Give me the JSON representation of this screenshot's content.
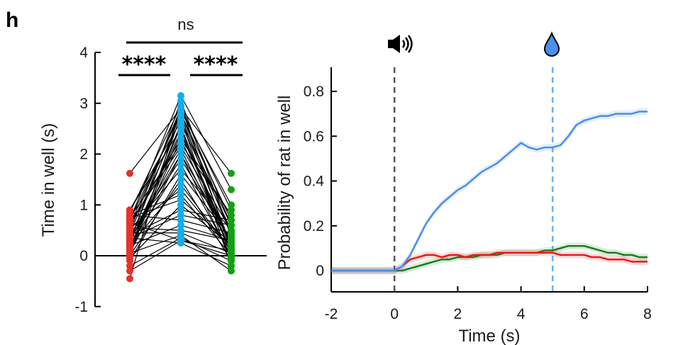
{
  "panel_label": "h",
  "colors": {
    "red": "#e8302a",
    "blue": "#14aee8",
    "green": "#12a112",
    "curve_blue": "#4a8fe8",
    "curve_red": "#e61a1a",
    "curve_green": "#1a7f1a",
    "cue_line": "#555555",
    "reward_line": "#6ab0ee"
  },
  "icons": {
    "cue": "speaker-icon",
    "reward": "water-drop-icon"
  },
  "chart_data": [
    {
      "type": "scatter",
      "subtype": "paired-dot-plot",
      "ylabel": "Time in well (s)",
      "ylim": [
        -1,
        4
      ],
      "yticks": [
        "-1",
        "0",
        "1",
        "2",
        "3",
        "4"
      ],
      "groups": [
        "red",
        "blue",
        "green"
      ],
      "significance": [
        {
          "pair": [
            0,
            1
          ],
          "label": "****"
        },
        {
          "pair": [
            1,
            2
          ],
          "label": "****"
        },
        {
          "pair": [
            0,
            2
          ],
          "label": "ns"
        }
      ],
      "pairs": [
        [
          0.85,
          2.95,
          0.6
        ],
        [
          0.9,
          2.5,
          0.2
        ],
        [
          0.7,
          2.8,
          0.4
        ],
        [
          0.6,
          2.3,
          0.1
        ],
        [
          0.5,
          2.9,
          0.9
        ],
        [
          0.3,
          2.0,
          0.3
        ],
        [
          0.2,
          1.8,
          0.0
        ],
        [
          0.1,
          2.6,
          0.5
        ],
        [
          0.0,
          1.5,
          -0.1
        ],
        [
          -0.05,
          1.0,
          0.2
        ],
        [
          0.4,
          0.9,
          0.7
        ],
        [
          0.55,
          0.5,
          0.3
        ],
        [
          0.65,
          0.3,
          0.1
        ],
        [
          0.75,
          2.2,
          0.8
        ],
        [
          0.8,
          1.2,
          0.0
        ],
        [
          0.45,
          2.7,
          -0.2
        ],
        [
          0.35,
          0.8,
          0.6
        ],
        [
          0.25,
          3.05,
          0.4
        ],
        [
          0.15,
          2.4,
          0.2
        ],
        [
          0.05,
          0.4,
          -0.3
        ],
        [
          0.6,
          2.85,
          1.0
        ],
        [
          0.5,
          1.7,
          0.5
        ],
        [
          0.3,
          2.1,
          0.1
        ],
        [
          0.2,
          0.6,
          0.3
        ],
        [
          0.0,
          2.75,
          0.2
        ],
        [
          -0.2,
          0.35,
          -0.1
        ],
        [
          -0.3,
          0.3,
          0.0
        ],
        [
          -0.45,
          2.95,
          0.1
        ],
        [
          1.62,
          2.9,
          1.62
        ],
        [
          0.7,
          3.15,
          1.3
        ],
        [
          0.1,
          2.3,
          0.8
        ],
        [
          0.4,
          1.9,
          0.3
        ],
        [
          0.9,
          2.65,
          0.6
        ],
        [
          0.55,
          1.3,
          0.1
        ],
        [
          0.35,
          0.25,
          -0.2
        ],
        [
          0.15,
          2.55,
          0.0
        ],
        [
          -0.1,
          1.6,
          0.35
        ],
        [
          0.8,
          0.7,
          0.45
        ],
        [
          0.25,
          2.45,
          0.15
        ],
        [
          0.65,
          2.15,
          0.5
        ],
        [
          0.45,
          0.45,
          0.05
        ],
        [
          0.05,
          2.0,
          -0.05
        ],
        [
          0.75,
          1.1,
          0.25
        ],
        [
          0.3,
          2.8,
          0.7
        ],
        [
          0.2,
          1.4,
          0.1
        ]
      ]
    },
    {
      "type": "line",
      "xlabel": "Time (s)",
      "ylabel": "Probability of rat in well",
      "xlim": [
        -2,
        8
      ],
      "ylim": [
        -0.08,
        0.9
      ],
      "xticks": [
        "-2",
        "0",
        "2",
        "4",
        "6",
        "8"
      ],
      "yticks": [
        "0",
        "0.2",
        "0.4",
        "0.6",
        "0.8"
      ],
      "markers": [
        {
          "x": 0,
          "icon": "speaker-icon"
        },
        {
          "x": 5,
          "icon": "water-drop-icon"
        }
      ],
      "x": [
        -2,
        -1.5,
        -1,
        -0.5,
        0,
        0.25,
        0.5,
        0.75,
        1,
        1.25,
        1.5,
        1.75,
        2,
        2.25,
        2.5,
        2.75,
        3,
        3.25,
        3.5,
        3.75,
        4,
        4.25,
        4.5,
        4.75,
        5,
        5.25,
        5.5,
        5.75,
        6,
        6.25,
        6.5,
        6.75,
        7,
        7.25,
        7.5,
        7.75,
        8
      ],
      "series": [
        {
          "color": "blue",
          "values": [
            0.0,
            0.0,
            0.0,
            0.0,
            0.0,
            0.02,
            0.07,
            0.14,
            0.21,
            0.26,
            0.3,
            0.33,
            0.36,
            0.38,
            0.41,
            0.44,
            0.46,
            0.48,
            0.51,
            0.54,
            0.57,
            0.55,
            0.54,
            0.55,
            0.55,
            0.56,
            0.6,
            0.65,
            0.67,
            0.68,
            0.69,
            0.69,
            0.7,
            0.7,
            0.7,
            0.71,
            0.71
          ]
        },
        {
          "color": "red",
          "values": [
            0.0,
            0.0,
            0.0,
            0.0,
            0.0,
            0.02,
            0.05,
            0.06,
            0.07,
            0.07,
            0.06,
            0.07,
            0.07,
            0.06,
            0.07,
            0.07,
            0.07,
            0.08,
            0.08,
            0.08,
            0.08,
            0.08,
            0.08,
            0.08,
            0.08,
            0.07,
            0.07,
            0.07,
            0.07,
            0.06,
            0.06,
            0.05,
            0.05,
            0.05,
            0.04,
            0.04,
            0.04
          ]
        },
        {
          "color": "green",
          "values": [
            0.0,
            0.0,
            0.0,
            0.0,
            0.0,
            0.0,
            0.01,
            0.02,
            0.03,
            0.04,
            0.05,
            0.05,
            0.06,
            0.06,
            0.06,
            0.07,
            0.07,
            0.07,
            0.08,
            0.08,
            0.08,
            0.08,
            0.08,
            0.09,
            0.09,
            0.1,
            0.11,
            0.11,
            0.11,
            0.1,
            0.09,
            0.08,
            0.08,
            0.07,
            0.07,
            0.06,
            0.06
          ]
        }
      ]
    }
  ]
}
